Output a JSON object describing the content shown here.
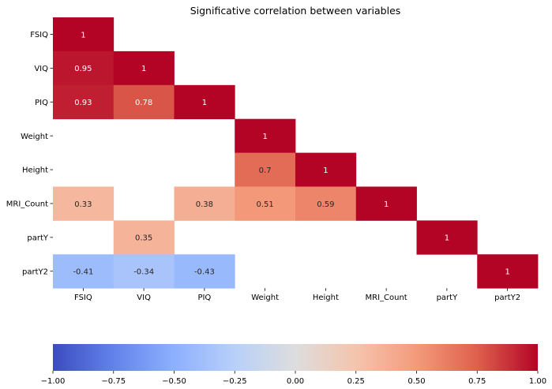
{
  "chart_data": {
    "type": "heatmap",
    "title": "Significative correlation between variables",
    "variables": [
      "FSIQ",
      "VIQ",
      "PIQ",
      "Weight",
      "Height",
      "MRI_Count",
      "partY",
      "partY2"
    ],
    "cells": [
      {
        "row": "FSIQ",
        "col": "FSIQ",
        "value": 1,
        "label": "1"
      },
      {
        "row": "VIQ",
        "col": "FSIQ",
        "value": 0.95,
        "label": "0.95"
      },
      {
        "row": "VIQ",
        "col": "VIQ",
        "value": 1,
        "label": "1"
      },
      {
        "row": "PIQ",
        "col": "FSIQ",
        "value": 0.93,
        "label": "0.93"
      },
      {
        "row": "PIQ",
        "col": "VIQ",
        "value": 0.78,
        "label": "0.78"
      },
      {
        "row": "PIQ",
        "col": "PIQ",
        "value": 1,
        "label": "1"
      },
      {
        "row": "Weight",
        "col": "Weight",
        "value": 1,
        "label": "1"
      },
      {
        "row": "Height",
        "col": "Weight",
        "value": 0.7,
        "label": "0.7"
      },
      {
        "row": "Height",
        "col": "Height",
        "value": 1,
        "label": "1"
      },
      {
        "row": "MRI_Count",
        "col": "FSIQ",
        "value": 0.33,
        "label": "0.33"
      },
      {
        "row": "MRI_Count",
        "col": "PIQ",
        "value": 0.38,
        "label": "0.38"
      },
      {
        "row": "MRI_Count",
        "col": "Weight",
        "value": 0.51,
        "label": "0.51"
      },
      {
        "row": "MRI_Count",
        "col": "Height",
        "value": 0.59,
        "label": "0.59"
      },
      {
        "row": "MRI_Count",
        "col": "MRI_Count",
        "value": 1,
        "label": "1"
      },
      {
        "row": "partY",
        "col": "VIQ",
        "value": 0.35,
        "label": "0.35"
      },
      {
        "row": "partY",
        "col": "partY",
        "value": 1,
        "label": "1"
      },
      {
        "row": "partY2",
        "col": "FSIQ",
        "value": -0.41,
        "label": "-0.41"
      },
      {
        "row": "partY2",
        "col": "VIQ",
        "value": -0.34,
        "label": "-0.34"
      },
      {
        "row": "partY2",
        "col": "PIQ",
        "value": -0.43,
        "label": "-0.43"
      },
      {
        "row": "partY2",
        "col": "partY2",
        "value": 1,
        "label": "1"
      }
    ],
    "colorbar": {
      "colormap": "coolwarm",
      "range": [
        -1,
        1
      ],
      "orientation": "horizontal",
      "ticks": [
        -1,
        -0.75,
        -0.5,
        -0.25,
        0,
        0.25,
        0.5,
        0.75,
        1
      ],
      "tick_labels": [
        "−1.00",
        "−0.75",
        "−0.50",
        "−0.25",
        "0.00",
        "0.25",
        "0.50",
        "0.75",
        "1.00"
      ]
    },
    "colors": {
      "cool": "#3b4cc0",
      "neutral": "#dddddd",
      "warm": "#b40426",
      "annot_light": "#ffffff",
      "annot_dark": "#262626"
    }
  }
}
